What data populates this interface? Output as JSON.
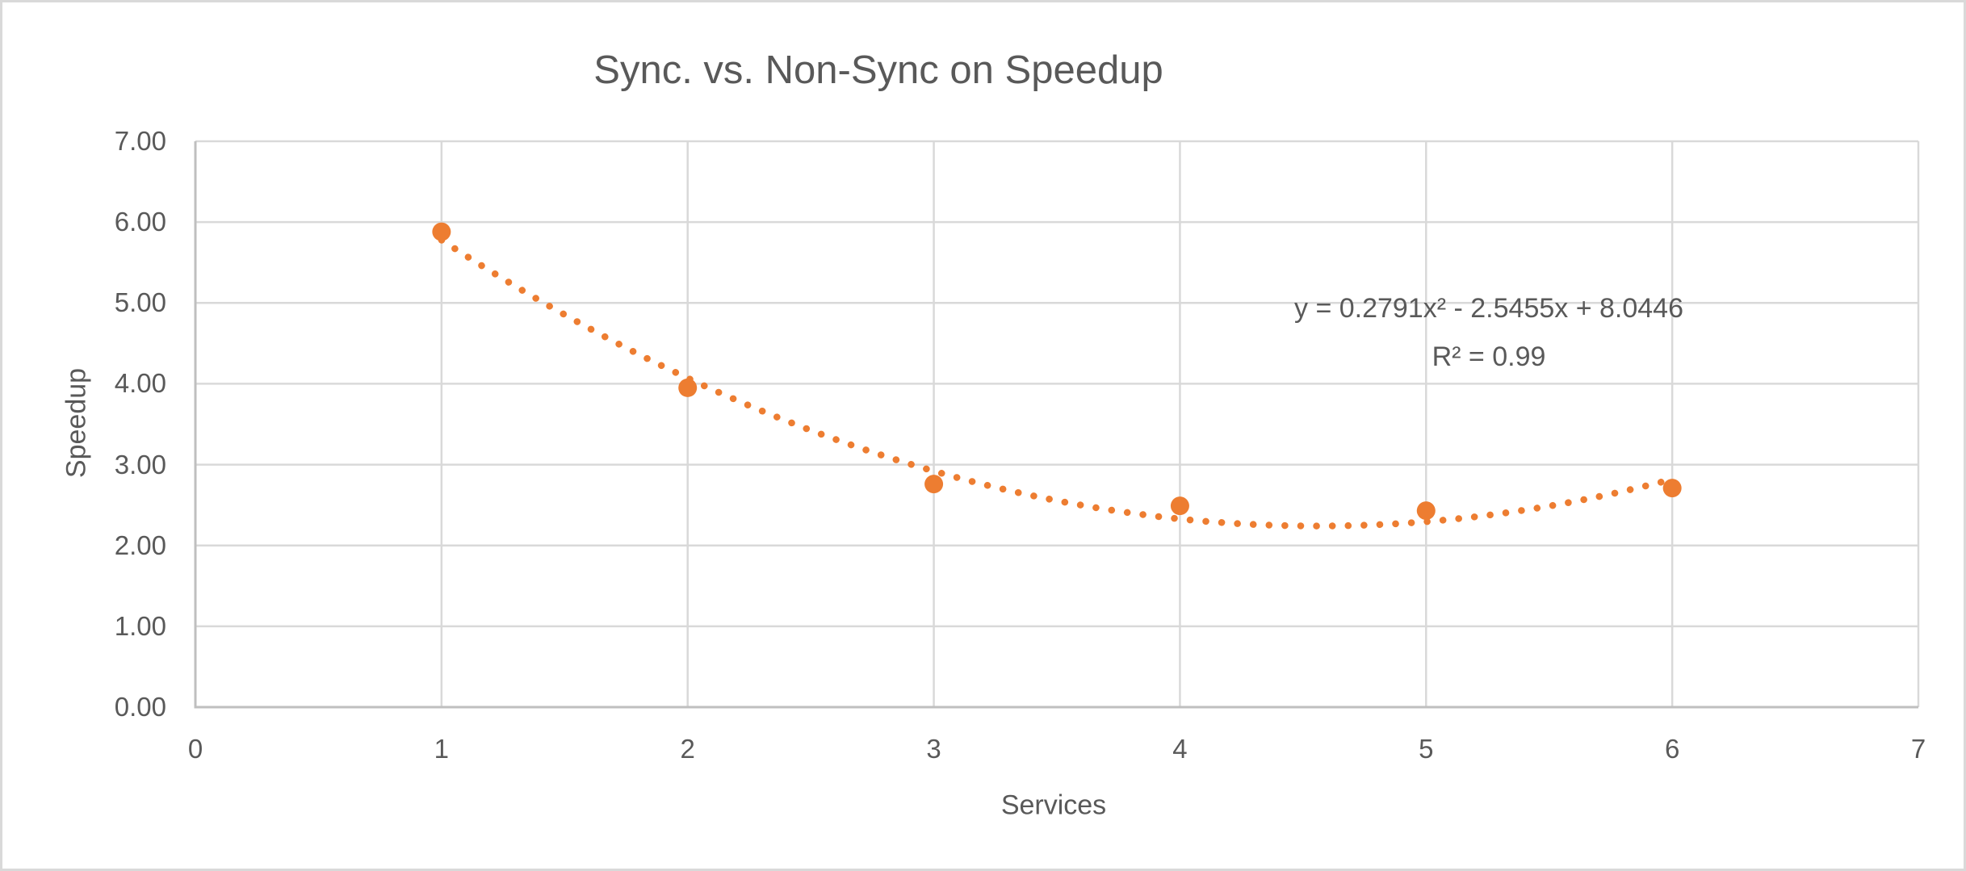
{
  "window": {
    "background": "#FFFFFF",
    "border_color": "#D9D9D9"
  },
  "chart_data": {
    "type": "scatter",
    "title": "Sync. vs. Non-Sync on Speedup",
    "xlabel": "Services",
    "ylabel": "Speedup",
    "xlim": [
      0,
      7
    ],
    "ylim": [
      0,
      7
    ],
    "x_ticks": [
      "0",
      "1",
      "2",
      "3",
      "4",
      "5",
      "6",
      "7"
    ],
    "y_ticks": [
      "0.00",
      "1.00",
      "2.00",
      "3.00",
      "4.00",
      "5.00",
      "6.00",
      "7.00"
    ],
    "grid": true,
    "legend": "none",
    "points": [
      {
        "x": 1,
        "y": 5.88
      },
      {
        "x": 2,
        "y": 3.95
      },
      {
        "x": 3,
        "y": 2.76
      },
      {
        "x": 4,
        "y": 2.49
      },
      {
        "x": 5,
        "y": 2.43
      },
      {
        "x": 6,
        "y": 2.71
      }
    ],
    "trendline": {
      "type": "polynomial",
      "order": 2,
      "a": 0.2791,
      "b": -2.5455,
      "c": 8.0446,
      "x_start": 1,
      "x_end": 6,
      "style": "dotted",
      "equation_label": "y = 0.2791x² - 2.5455x + 8.0446",
      "r_squared_label": "R² = 0.99"
    },
    "colors": {
      "series": "#ED7D31",
      "text": "#595959",
      "gridline": "#D9D9D9",
      "axis_line": "#BFBFBF"
    }
  }
}
